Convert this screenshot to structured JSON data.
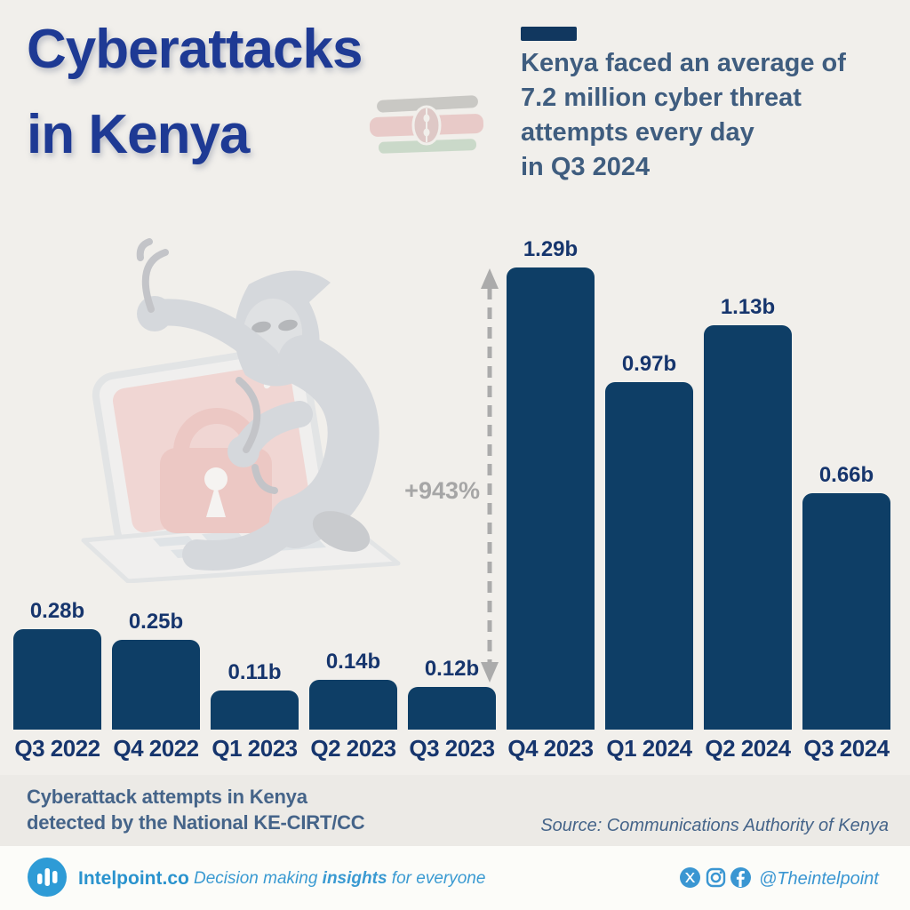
{
  "header": {
    "title_line1": "Cyberattacks",
    "title_line2": "in Kenya",
    "kicker_text": "Kenya faced an average of\n7.2 million cyber threat\nattempts every day\nin Q3 2024"
  },
  "chart_data": {
    "type": "bar",
    "categories": [
      "Q3 2022",
      "Q4 2022",
      "Q1 2023",
      "Q2 2023",
      "Q3 2023",
      "Q4 2023",
      "Q1 2024",
      "Q2 2024",
      "Q3 2024"
    ],
    "values": [
      0.28,
      0.25,
      0.11,
      0.14,
      0.12,
      1.29,
      0.97,
      1.13,
      0.66
    ],
    "value_labels": [
      "0.28b",
      "0.25b",
      "0.11b",
      "0.14b",
      "0.12b",
      "1.29b",
      "0.97b",
      "1.13b",
      "0.66b"
    ],
    "unit": "billions of cyberattack attempts per quarter",
    "title": "Cyberattacks in Kenya",
    "xlabel": "",
    "ylabel": "",
    "ylim": [
      0,
      1.35
    ],
    "grid": false,
    "legend": false,
    "annotation": {
      "label": "+943%",
      "from_category": "Q3 2023",
      "to_category": "Q4 2023"
    }
  },
  "caption": {
    "text": "Cyberattack attempts in Kenya\ndetected by the National KE-CIRT/CC"
  },
  "source": {
    "text": "Source: Communications Authority of Kenya"
  },
  "footer": {
    "brand": "Intelpoint.co",
    "tagline_prefix": "Decision making ",
    "tagline_bold": "insights",
    "tagline_suffix": " for everyone",
    "social_handle": "@Theintelpoint"
  },
  "colors": {
    "background": "#f1efeb",
    "bar_navy": "#0e3e66",
    "label_navy": "#16356d",
    "title_blue": "#1e3a94",
    "subtitle_slate": "#3f5d7f",
    "caption_slate": "#456489",
    "annotation_gray": "#a6a6a6",
    "brand_blue": "#2a93ce",
    "footer_bg": "#fcfcf9",
    "caption_strip_bg": "#eceae6",
    "flag_red": "#c1272d",
    "flag_green": "#1f7a33"
  }
}
